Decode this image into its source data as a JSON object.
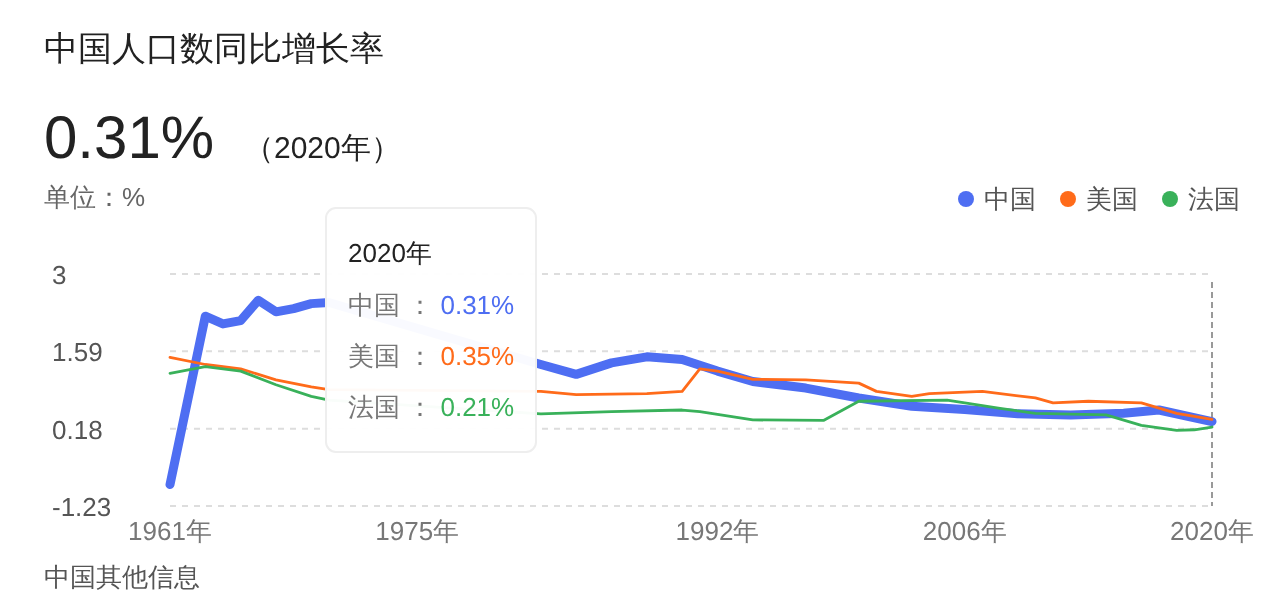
{
  "chart_data": {
    "type": "line",
    "title": "中国人口数同比增长率",
    "subtitle": "0.31%",
    "annotations": [
      "（2020年）",
      "单位：%",
      "2020年",
      "中国：0.31%",
      "美国：0.35%",
      "法国：0.21%",
      "中国其他信息"
    ],
    "series": [
      {
        "name": "中国",
        "color": "#4e6ef2",
        "x": [
          1961,
          1963,
          1964,
          1965,
          1966,
          1967,
          1968,
          1969,
          1970,
          1982,
          1984,
          1986,
          1988,
          1990,
          1992,
          1994,
          1997,
          2000,
          2003,
          2006,
          2009,
          2012,
          2015,
          2017,
          2020
        ],
        "values": [
          -0.84,
          2.23,
          2.09,
          2.15,
          2.52,
          2.31,
          2.37,
          2.46,
          2.48,
          1.35,
          1.17,
          1.38,
          1.49,
          1.44,
          1.23,
          1.04,
          0.92,
          0.74,
          0.59,
          0.53,
          0.45,
          0.43,
          0.46,
          0.52,
          0.31
        ]
      },
      {
        "name": "美国",
        "color": "#ff6b1a",
        "x": [
          1961,
          1963,
          1965,
          1967,
          1969,
          1970,
          1982,
          1984,
          1988,
          1990,
          1991,
          1992,
          1994,
          1997,
          2000,
          2001,
          2003,
          2004,
          2007,
          2010,
          2011,
          2013,
          2016,
          2018,
          2020
        ],
        "values": [
          1.48,
          1.35,
          1.27,
          1.07,
          0.94,
          0.89,
          0.86,
          0.8,
          0.82,
          0.86,
          1.27,
          1.23,
          1.08,
          1.07,
          1.01,
          0.86,
          0.77,
          0.82,
          0.86,
          0.74,
          0.65,
          0.68,
          0.65,
          0.46,
          0.35
        ]
      },
      {
        "name": "法国",
        "color": "#39b15a",
        "x": [
          1961,
          1963,
          1965,
          1967,
          1969,
          1970,
          1982,
          1986,
          1990,
          1991,
          1994,
          1998,
          2000,
          2005,
          2008,
          2010,
          2014,
          2016,
          2018,
          2019,
          2020
        ],
        "values": [
          1.19,
          1.31,
          1.23,
          0.98,
          0.77,
          0.7,
          0.45,
          0.49,
          0.52,
          0.49,
          0.34,
          0.33,
          0.68,
          0.7,
          0.55,
          0.46,
          0.43,
          0.24,
          0.15,
          0.16,
          0.21
        ]
      }
    ],
    "xlim": [
      1961,
      2020
    ],
    "xticks": [
      {
        "value": 1961,
        "label": "1961年"
      },
      {
        "value": 1975,
        "label": "1975年"
      },
      {
        "value": 1992,
        "label": "1992年"
      },
      {
        "value": 2006,
        "label": "2006年"
      },
      {
        "value": 2020,
        "label": "2020年"
      }
    ],
    "ylim": [
      -1.23,
      3
    ],
    "yticks": [
      3,
      1.59,
      0.18,
      -1.23
    ],
    "grid": "y",
    "legend": "top right",
    "ref_lines": [
      {
        "axis": "x",
        "value": 2020,
        "label": null
      }
    ]
  }
}
